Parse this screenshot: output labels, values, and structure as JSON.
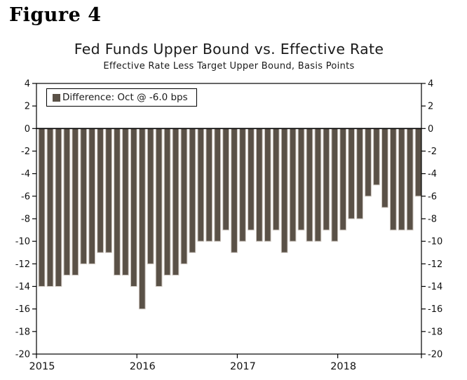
{
  "figure_label": "Figure 4",
  "colors": {
    "bar": "#5a5147",
    "bar_outline": "#cbc4bd",
    "axis": "#000000",
    "text": "#111111"
  },
  "chart_data": {
    "type": "bar",
    "title": "Fed Funds Upper Bound vs. Effective Rate",
    "subtitle": "Effective Rate Less Target Upper Bound, Basis Points",
    "legend_label": "Difference: Oct @ -6.0 bps",
    "legend_position": "top-left",
    "grid": false,
    "ylabel": "Basis Points",
    "ylim": [
      -20,
      4
    ],
    "ytick_step": 2,
    "year_tick_labels": [
      "2015",
      "2016",
      "2017",
      "2018"
    ],
    "x": [
      "Jan 2015",
      "Feb 2015",
      "Mar 2015",
      "Apr 2015",
      "May 2015",
      "Jun 2015",
      "Jul 2015",
      "Aug 2015",
      "Sep 2015",
      "Oct 2015",
      "Nov 2015",
      "Dec 2015",
      "Jan 2016",
      "Feb 2016",
      "Mar 2016",
      "Apr 2016",
      "May 2016",
      "Jun 2016",
      "Jul 2016",
      "Aug 2016",
      "Sep 2016",
      "Oct 2016",
      "Nov 2016",
      "Dec 2016",
      "Jan 2017",
      "Feb 2017",
      "Mar 2017",
      "Apr 2017",
      "May 2017",
      "Jun 2017",
      "Jul 2017",
      "Aug 2017",
      "Sep 2017",
      "Oct 2017",
      "Nov 2017",
      "Dec 2017",
      "Jan 2018",
      "Feb 2018",
      "Mar 2018",
      "Apr 2018",
      "May 2018",
      "Jun 2018",
      "Jul 2018",
      "Aug 2018",
      "Sep 2018",
      "Oct 2018"
    ],
    "values": [
      -14,
      -14,
      -14,
      -13,
      -13,
      -12,
      -12,
      -11,
      -11,
      -13,
      -13,
      -14,
      -16,
      -12,
      -14,
      -13,
      -13,
      -12,
      -11,
      -10,
      -10,
      -10,
      -9,
      -11,
      -10,
      -9,
      -10,
      -10,
      -9,
      -11,
      -10,
      -9,
      -10,
      -10,
      -9,
      -10,
      -9,
      -8,
      -8,
      -6,
      -5,
      -7,
      -9,
      -9,
      -9,
      -6
    ]
  }
}
